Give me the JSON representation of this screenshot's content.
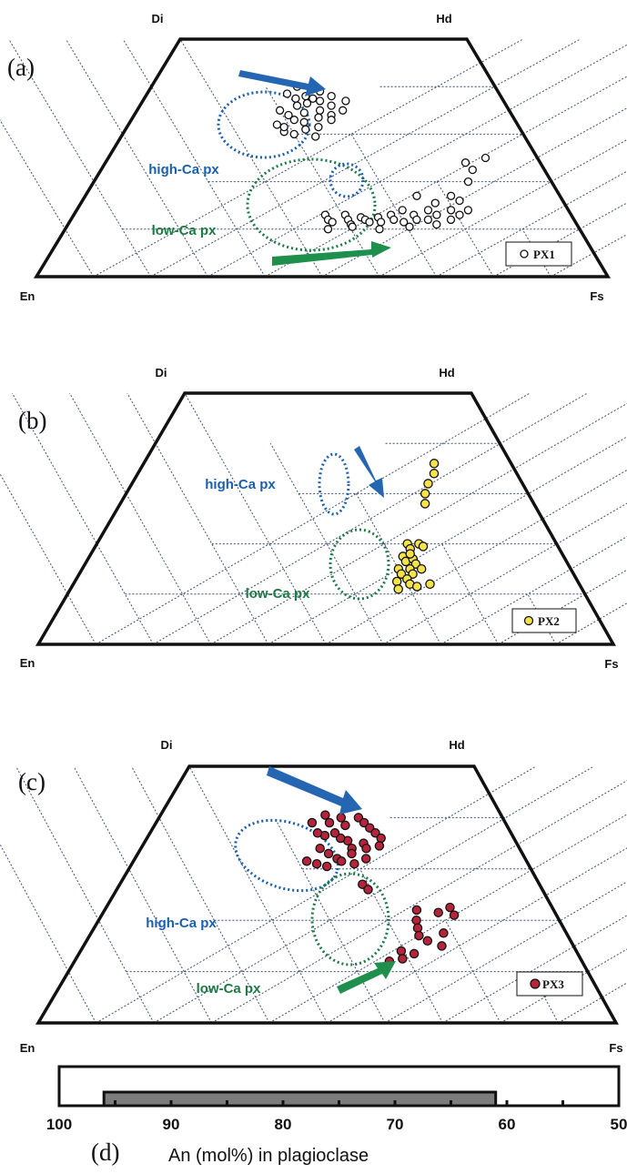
{
  "chart_data": [
    {
      "type": "scatter",
      "panel_label": "(a)",
      "apices": {
        "top_left": "Di",
        "top_right": "Hd",
        "bottom_left": "En",
        "bottom_right": "Fs"
      },
      "fields": [
        {
          "text": "high-Ca px",
          "color": "#1a5fb0"
        },
        {
          "text": "low-Ca px",
          "color": "#1d7a45"
        }
      ],
      "legend": {
        "label": "PX1",
        "marker_fill": "#ffffff"
      },
      "points": [
        [
          24.5,
          38.5
        ],
        [
          25.5,
          40
        ],
        [
          26.5,
          37.5
        ],
        [
          25,
          35
        ],
        [
          27.5,
          36
        ],
        [
          28,
          38
        ],
        [
          29,
          36.5
        ],
        [
          30,
          39
        ],
        [
          29.5,
          34.5
        ],
        [
          31,
          37
        ],
        [
          32,
          35
        ],
        [
          30.5,
          32.5
        ],
        [
          28.5,
          33
        ],
        [
          27,
          34
        ],
        [
          26,
          32
        ],
        [
          32.5,
          38
        ],
        [
          33.5,
          36
        ],
        [
          34.5,
          34
        ],
        [
          33.5,
          31.5
        ],
        [
          31.5,
          31
        ],
        [
          30,
          30
        ],
        [
          28,
          30.5
        ],
        [
          34,
          29.5
        ],
        [
          35.5,
          37
        ],
        [
          35,
          33
        ],
        [
          32.5,
          33.5
        ],
        [
          29.5,
          37.5
        ],
        [
          27.5,
          31.5
        ],
        [
          36,
          35
        ],
        [
          44,
          13
        ],
        [
          45,
          12
        ],
        [
          46,
          11.5
        ],
        [
          47.5,
          13
        ],
        [
          48.5,
          12
        ],
        [
          49.5,
          11
        ],
        [
          50.5,
          12.5
        ],
        [
          51.5,
          12
        ],
        [
          52.5,
          11.5
        ],
        [
          53.5,
          12.5
        ],
        [
          54.5,
          11.5
        ],
        [
          55.5,
          13
        ],
        [
          56.5,
          12
        ],
        [
          57,
          14
        ],
        [
          58.5,
          11.5
        ],
        [
          59.5,
          13
        ],
        [
          60.5,
          12
        ],
        [
          61.5,
          14
        ],
        [
          62.5,
          12
        ],
        [
          63.5,
          13
        ],
        [
          64.5,
          11
        ],
        [
          65.5,
          14
        ],
        [
          66.5,
          12
        ],
        [
          67.5,
          13
        ],
        [
          58,
          17
        ],
        [
          62,
          15.5
        ],
        [
          64,
          17
        ],
        [
          68.5,
          14
        ],
        [
          46,
          10
        ],
        [
          50,
          10.5
        ],
        [
          55,
          10
        ],
        [
          60,
          10.5
        ],
        [
          66,
          16
        ],
        [
          63,
          24
        ],
        [
          65,
          22.5
        ],
        [
          66,
          25
        ],
        [
          65.5,
          20
        ]
      ]
    },
    {
      "type": "scatter",
      "panel_label": "(b)",
      "apices": {
        "top_left": "Di",
        "top_right": "Hd",
        "bottom_left": "En",
        "bottom_right": "Fs"
      },
      "fields": [
        {
          "text": "high-Ca px",
          "color": "#1a5fb0"
        },
        {
          "text": "low-Ca px",
          "color": "#1d7a45"
        }
      ],
      "legend": {
        "label": "PX2",
        "marker_fill": "#f5e34a"
      },
      "points": [
        [
          50.5,
          36
        ],
        [
          51.5,
          34
        ],
        [
          51.5,
          32
        ],
        [
          52,
          30
        ],
        [
          53,
          28
        ],
        [
          54,
          20
        ],
        [
          55,
          19
        ],
        [
          56,
          20
        ],
        [
          57,
          19.5
        ],
        [
          54.5,
          17.5
        ],
        [
          55.5,
          16.5
        ],
        [
          56.5,
          17
        ],
        [
          57.5,
          16
        ],
        [
          55,
          15
        ],
        [
          56,
          14
        ],
        [
          57,
          15
        ],
        [
          58,
          14
        ],
        [
          56,
          12.5
        ],
        [
          57.5,
          13
        ],
        [
          58.5,
          12
        ],
        [
          59,
          15
        ],
        [
          60,
          11.5
        ],
        [
          57,
          11
        ],
        [
          62,
          12
        ],
        [
          55.5,
          18
        ]
      ]
    },
    {
      "type": "scatter",
      "panel_label": "(c)",
      "apices": {
        "top_left": "Di",
        "top_right": "Hd",
        "bottom_left": "En",
        "bottom_right": "Fs"
      },
      "fields": [
        {
          "text": "high-Ca px",
          "color": "#1a5fb0"
        },
        {
          "text": "low-Ca px",
          "color": "#1d7a45"
        }
      ],
      "legend": {
        "label": "PX3",
        "marker_fill": "#b5243a"
      },
      "points": [
        [
          27,
          39
        ],
        [
          28.5,
          40.5
        ],
        [
          30,
          39
        ],
        [
          31.5,
          40
        ],
        [
          33,
          38.5
        ],
        [
          34.5,
          40
        ],
        [
          36,
          39
        ],
        [
          37.5,
          38
        ],
        [
          39,
          37
        ],
        [
          40.5,
          36
        ],
        [
          38,
          35
        ],
        [
          36.5,
          34
        ],
        [
          35,
          35.5
        ],
        [
          33.5,
          36
        ],
        [
          32,
          37
        ],
        [
          30.5,
          36.5
        ],
        [
          29,
          37
        ],
        [
          31,
          34
        ],
        [
          33,
          33
        ],
        [
          35,
          32
        ],
        [
          37,
          33
        ],
        [
          39,
          34
        ],
        [
          41,
          34.5
        ],
        [
          40,
          32
        ],
        [
          38.5,
          31
        ],
        [
          36,
          31.5
        ],
        [
          34,
          30.5
        ],
        [
          32,
          31
        ],
        [
          30,
          31.5
        ],
        [
          42,
          27
        ],
        [
          43.5,
          26
        ],
        [
          54,
          22
        ],
        [
          55,
          20
        ],
        [
          58,
          21.5
        ],
        [
          59.5,
          22.5
        ],
        [
          61,
          21
        ],
        [
          56,
          18.5
        ],
        [
          57,
          17
        ],
        [
          59,
          16
        ],
        [
          61,
          17.5
        ],
        [
          62,
          15
        ],
        [
          55.5,
          14
        ],
        [
          56.5,
          12.5
        ],
        [
          58,
          13.5
        ],
        [
          54.5,
          12
        ]
      ]
    },
    {
      "type": "bar",
      "panel_label": "(d)",
      "xlabel": "An (mol%) in plagioclase",
      "xlim": [
        100,
        50
      ],
      "ticks": [
        "100",
        "90",
        "80",
        "70",
        "60",
        "50"
      ],
      "range": [
        96,
        61
      ]
    }
  ],
  "colors": {
    "high_ca_field": "#1a5fb0",
    "low_ca_field": "#1d7a45",
    "high_ca_arrow": "#2466b2",
    "low_ca_arrow": "#1e8f4c",
    "grid": "#3d4f72",
    "bar_fill": "#7c7c7c"
  }
}
